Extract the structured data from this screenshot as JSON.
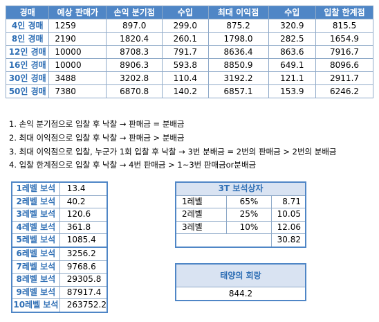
{
  "main": {
    "headers": [
      "경매",
      "예상 판매가",
      "손익 분기점",
      "수입",
      "최대 이익점",
      "수입",
      "입찰 한계점"
    ],
    "rows": [
      [
        "4인 경매",
        "1259",
        "897.0",
        "299.0",
        "875.2",
        "320.9",
        "815.5"
      ],
      [
        "8인 경매",
        "2190",
        "1820.4",
        "260.1",
        "1798.0",
        "282.5",
        "1654.9"
      ],
      [
        "12인 경매",
        "10000",
        "8708.3",
        "791.7",
        "8636.4",
        "863.6",
        "7916.7"
      ],
      [
        "16인 경매",
        "10000",
        "8906.3",
        "593.8",
        "8850.9",
        "649.1",
        "8096.6"
      ],
      [
        "30인 경매",
        "3488",
        "3202.8",
        "110.4",
        "3192.2",
        "121.1",
        "2911.7"
      ],
      [
        "50인 경매",
        "7380",
        "6870.8",
        "140.2",
        "6857.1",
        "153.9",
        "6246.2"
      ]
    ]
  },
  "notes": [
    "1. 손익 분기점으로 입찰 후 낙찰 → 판매금 = 분배금",
    "2. 최대 이익점으로 입찰 후 낙찰 → 판매금 > 분배금",
    "3. 최대 이익점으로 입찰, 누군가 1회 입찰 후 낙찰 → 3번 분배금 = 2번의 판매금 > 2번의 분배금",
    "4. 입찰 한계점으로 입찰 후 낙찰 → 4번 판매금 > 1~3번 판매금or분배금"
  ],
  "gems": {
    "rows": [
      [
        "1레벨 보석",
        "13.4"
      ],
      [
        "2레벨 보석",
        "40.2"
      ],
      [
        "3레벨 보석",
        "120.6"
      ],
      [
        "4레벨 보석",
        "361.8"
      ],
      [
        "5레벨 보석",
        "1085.4"
      ],
      [
        "6레벨 보석",
        "3256.2"
      ],
      [
        "7레벨 보석",
        "9768.6"
      ],
      [
        "8레벨 보석",
        "29305.8"
      ],
      [
        "9레벨 보석",
        "87917.4"
      ],
      [
        "10레벨 보석",
        "263752.2"
      ]
    ]
  },
  "shop": {
    "title": "3T 보석상자",
    "rows": [
      [
        "1레벨",
        "65%",
        "8.71"
      ],
      [
        "2레벨",
        "25%",
        "10.05"
      ],
      [
        "3레벨",
        "10%",
        "12.06"
      ]
    ],
    "total": "30.82"
  },
  "sun": {
    "title": "태양의 회랑",
    "value": "844.2"
  }
}
